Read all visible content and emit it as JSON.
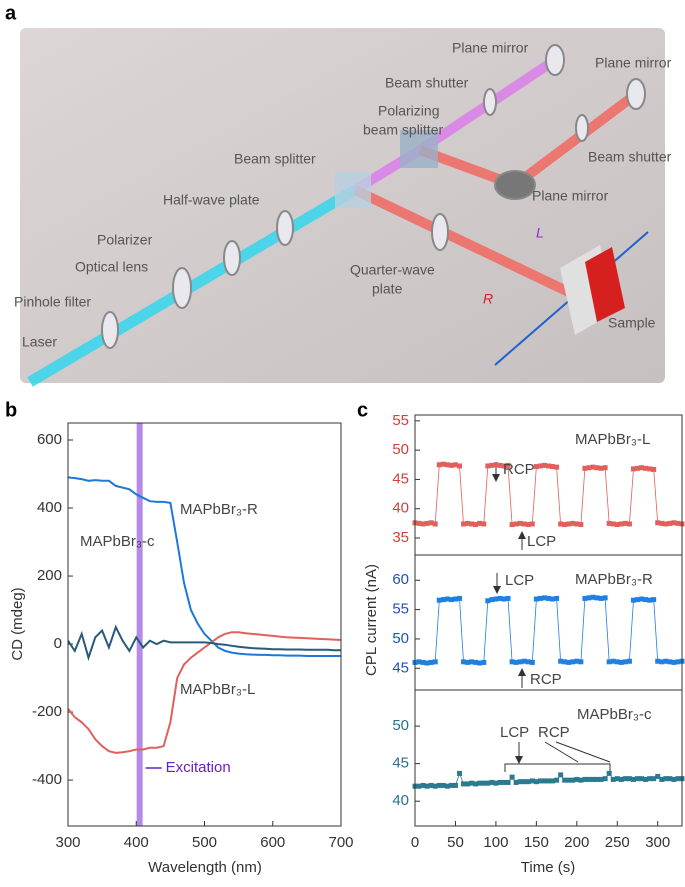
{
  "panel_labels": [
    "a",
    "b",
    "c"
  ],
  "diagram": {
    "labels": {
      "plane_mirror_1": "Plane mirror",
      "beam_shutter_1": "Beam shutter",
      "plane_mirror_2": "Plane mirror",
      "polarizing_beam_splitter": [
        "Polarizing",
        "beam splitter"
      ],
      "beam_shutter_2": "Beam shutter",
      "beam_splitter": "Beam splitter",
      "plane_mirror_3": "Plane mirror",
      "half_wave_plate": "Half-wave plate",
      "polarizer": "Polarizer",
      "quarter_wave_plate": [
        "Quarter-wave",
        "plate"
      ],
      "optical_lens": "Optical lens",
      "L": "L",
      "R": "R",
      "pinhole_filter": "Pinhole filter",
      "sample": "Sample",
      "laser": "Laser"
    }
  },
  "chart_data": [
    {
      "type": "line",
      "x_label": "Wavelength (nm)",
      "y_label": "CD (mdeg)",
      "xlim": [
        300,
        700
      ],
      "ylim": [
        -535,
        650
      ],
      "xticks": [
        300,
        400,
        500,
        600,
        700
      ],
      "yticks": [
        -400,
        -200,
        0,
        200,
        400,
        600
      ],
      "axis_color": "#333",
      "x": [
        300,
        310,
        320,
        330,
        340,
        350,
        360,
        370,
        380,
        390,
        400,
        410,
        420,
        430,
        440,
        450,
        460,
        470,
        480,
        490,
        500,
        510,
        520,
        530,
        540,
        550,
        560,
        570,
        580,
        590,
        600,
        610,
        620,
        630,
        640,
        650,
        660,
        670,
        680,
        690,
        700
      ],
      "series": [
        {
          "name": "MAPbBr₃-R",
          "color": "#1f78d6",
          "values": [
            490,
            488,
            485,
            480,
            482,
            480,
            480,
            465,
            460,
            455,
            440,
            430,
            420,
            418,
            418,
            415,
            300,
            180,
            100,
            60,
            30,
            10,
            -10,
            -20,
            -25,
            -28,
            -30,
            -31,
            -32,
            -32,
            -33,
            -33,
            -34,
            -34,
            -34,
            -35,
            -35,
            -35,
            -35,
            -35,
            -35
          ]
        },
        {
          "name": "MAPbBr₃-L",
          "color": "#e0605c",
          "values": [
            -190,
            -215,
            -230,
            -250,
            -280,
            -300,
            -315,
            -320,
            -318,
            -315,
            -310,
            -310,
            -305,
            -305,
            -300,
            -230,
            -100,
            -60,
            -40,
            -25,
            -10,
            5,
            20,
            30,
            35,
            35,
            32,
            30,
            28,
            26,
            24,
            22,
            20,
            19,
            18,
            17,
            16,
            15,
            14,
            13,
            12
          ]
        },
        {
          "name": "MAPbBr₃-c",
          "color": "#2a5a7a",
          "values": [
            10,
            -20,
            30,
            -40,
            20,
            40,
            -10,
            50,
            10,
            -20,
            20,
            -10,
            10,
            0,
            10,
            5,
            5,
            5,
            5,
            5,
            5,
            3,
            0,
            -2,
            -5,
            -8,
            -10,
            -12,
            -13,
            -14,
            -15,
            -15,
            -16,
            -16,
            -16,
            -17,
            -17,
            -17,
            -17,
            -18,
            -18
          ]
        }
      ],
      "annotations": [
        "MAPbBr₃-R",
        "MAPbBr₃-c",
        "MAPbBr₃-L"
      ],
      "excitation": {
        "wavelength": 405,
        "label": "Excitation",
        "color": "#b58be6"
      }
    },
    {
      "type": "line",
      "markers": true,
      "xlim": [
        0,
        330
      ],
      "ylim": [
        32.1,
        56
      ],
      "yticks": [
        35,
        40,
        45,
        50,
        55
      ],
      "axis_color": "#d0403c",
      "x": [
        0,
        5,
        10,
        15,
        20,
        25,
        30,
        35,
        40,
        45,
        50,
        55,
        60,
        65,
        70,
        75,
        80,
        85,
        90,
        95,
        100,
        105,
        110,
        115,
        120,
        125,
        130,
        135,
        140,
        145,
        150,
        155,
        160,
        165,
        170,
        175,
        180,
        185,
        190,
        195,
        200,
        205,
        210,
        215,
        220,
        225,
        230,
        235,
        240,
        245,
        250,
        255,
        260,
        265,
        270,
        275,
        280,
        285,
        290,
        295,
        300,
        305,
        310,
        315,
        320,
        325,
        330
      ],
      "series": [
        {
          "name": "MAPbBr₃-L",
          "color": "#e0605c",
          "values": [
            37.6,
            37.5,
            37.4,
            37.5,
            37.6,
            37.4,
            47.5,
            47.6,
            47.5,
            47.4,
            47.5,
            47.3,
            37.4,
            37.5,
            37.4,
            37.3,
            37.5,
            37.4,
            47.3,
            47.4,
            47.5,
            47.4,
            47.3,
            47.4,
            37.3,
            37.4,
            37.5,
            37.4,
            37.3,
            37.4,
            47.2,
            47.3,
            47.4,
            47.3,
            47.2,
            47.1,
            37.4,
            37.3,
            37.4,
            37.5,
            37.4,
            37.3,
            46.9,
            47.0,
            47.1,
            47.0,
            46.9,
            47.0,
            37.5,
            37.4,
            37.3,
            37.4,
            37.5,
            37.4,
            46.8,
            46.9,
            47.0,
            46.9,
            46.8,
            46.7,
            37.6,
            37.5,
            37.4,
            37.5,
            37.6,
            37.5,
            37.4
          ]
        }
      ],
      "annotations": [
        "MAPbBr₃-L",
        "RCP",
        "LCP"
      ]
    },
    {
      "type": "line",
      "markers": true,
      "y_label": "CPL current (nA)",
      "xlim": [
        0,
        330
      ],
      "ylim": [
        41.3,
        64.3
      ],
      "yticks": [
        45,
        50,
        55,
        60
      ],
      "axis_color": "#2050c0",
      "x": [
        0,
        5,
        10,
        15,
        20,
        25,
        30,
        35,
        40,
        45,
        50,
        55,
        60,
        65,
        70,
        75,
        80,
        85,
        90,
        95,
        100,
        105,
        110,
        115,
        120,
        125,
        130,
        135,
        140,
        145,
        150,
        155,
        160,
        165,
        170,
        175,
        180,
        185,
        190,
        195,
        200,
        205,
        210,
        215,
        220,
        225,
        230,
        235,
        240,
        245,
        250,
        255,
        260,
        265,
        270,
        275,
        280,
        285,
        290,
        295,
        300,
        305,
        310,
        315,
        320,
        325,
        330
      ],
      "series": [
        {
          "name": "MAPbBr₃-R",
          "color": "#1f80e0",
          "values": [
            46.0,
            46.1,
            46.0,
            45.9,
            46.0,
            46.1,
            56.6,
            56.7,
            56.8,
            56.7,
            56.8,
            56.9,
            46.1,
            46.0,
            46.1,
            46.0,
            45.9,
            46.0,
            56.5,
            56.7,
            56.8,
            56.9,
            56.8,
            56.9,
            46.1,
            46.0,
            46.1,
            46.2,
            46.1,
            46.0,
            56.8,
            56.9,
            57.0,
            56.9,
            56.8,
            56.9,
            46.2,
            46.1,
            46.0,
            46.1,
            46.2,
            46.1,
            56.9,
            57.0,
            57.1,
            57.0,
            56.9,
            57.0,
            46.1,
            46.2,
            46.1,
            46.0,
            46.1,
            46.2,
            56.6,
            56.7,
            56.8,
            56.7,
            56.6,
            56.7,
            46.2,
            46.1,
            46.2,
            46.1,
            46.0,
            46.1,
            46.2
          ]
        }
      ],
      "annotations": [
        "MAPbBr₃-R",
        "LCP",
        "RCP"
      ]
    },
    {
      "type": "line",
      "markers": true,
      "x_label": "Time (s)",
      "xlim": [
        0,
        330
      ],
      "ylim": [
        36.7,
        54.8
      ],
      "xticks": [
        0,
        50,
        100,
        150,
        200,
        250,
        300
      ],
      "yticks": [
        40,
        45,
        50
      ],
      "axis_color": "#2a7090",
      "x": [
        0,
        5,
        10,
        15,
        20,
        25,
        30,
        35,
        40,
        45,
        50,
        55,
        60,
        65,
        70,
        75,
        80,
        85,
        90,
        95,
        100,
        105,
        110,
        115,
        120,
        125,
        130,
        135,
        140,
        145,
        150,
        155,
        160,
        165,
        170,
        175,
        180,
        185,
        190,
        195,
        200,
        205,
        210,
        215,
        220,
        225,
        230,
        235,
        240,
        245,
        250,
        255,
        260,
        265,
        270,
        275,
        280,
        285,
        290,
        295,
        300,
        305,
        310,
        315,
        320,
        325,
        330
      ],
      "series": [
        {
          "name": "MAPbBr₃-c",
          "color": "#2a7a90",
          "values": [
            42.0,
            42.0,
            42.1,
            42.0,
            42.1,
            42.0,
            42.1,
            42.1,
            42.0,
            42.1,
            42.1,
            43.7,
            42.3,
            42.3,
            42.4,
            42.3,
            42.4,
            42.4,
            42.4,
            42.5,
            42.4,
            42.5,
            42.5,
            42.5,
            43.2,
            42.5,
            42.6,
            42.6,
            42.6,
            42.7,
            42.6,
            42.7,
            42.7,
            42.7,
            42.7,
            42.8,
            43.5,
            42.8,
            42.8,
            42.8,
            42.9,
            42.8,
            42.9,
            42.9,
            42.9,
            42.9,
            42.9,
            43.0,
            43.7,
            42.9,
            43.0,
            42.9,
            43.0,
            43.0,
            42.9,
            43.0,
            43.0,
            42.9,
            43.0,
            43.0,
            43.3,
            42.9,
            43.0,
            43.0,
            42.9,
            43.0,
            43.0
          ]
        }
      ],
      "annotations": [
        "MAPbBr₃-c",
        "LCP",
        "RCP"
      ]
    }
  ]
}
